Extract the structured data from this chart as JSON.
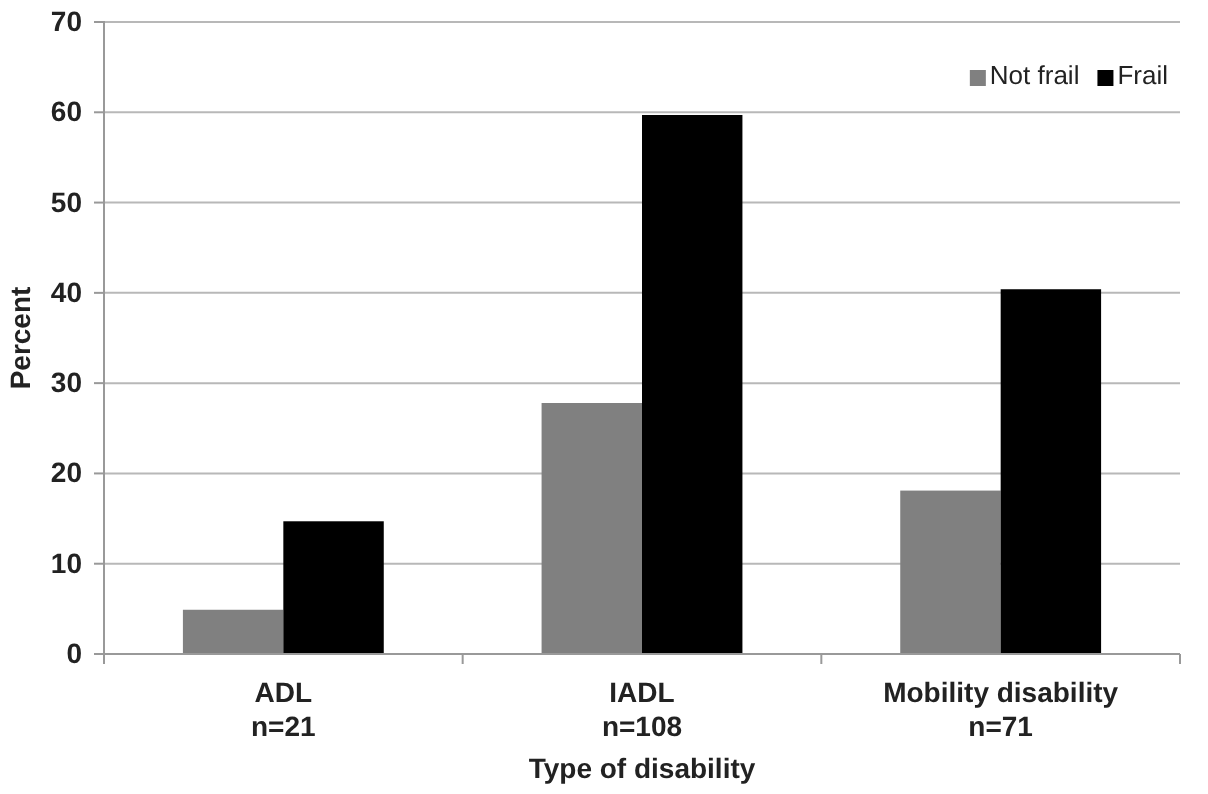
{
  "chart_data": {
    "type": "bar",
    "xlabel": "Type of disability",
    "ylabel": "Percent",
    "categories": [
      "ADL\nn=21",
      "IADL\nn=108",
      "Mobility disability\nn=71"
    ],
    "series": [
      {
        "name": "Not frail",
        "color": "#808080",
        "values": [
          4.9,
          27.8,
          18.1
        ]
      },
      {
        "name": "Frail",
        "color": "#000000",
        "values": [
          14.7,
          59.7,
          40.4
        ]
      }
    ],
    "ylim": [
      0,
      70
    ],
    "yticks": [
      0,
      10,
      20,
      30,
      40,
      50,
      60,
      70
    ],
    "grid": "y",
    "legend": "top right"
  }
}
